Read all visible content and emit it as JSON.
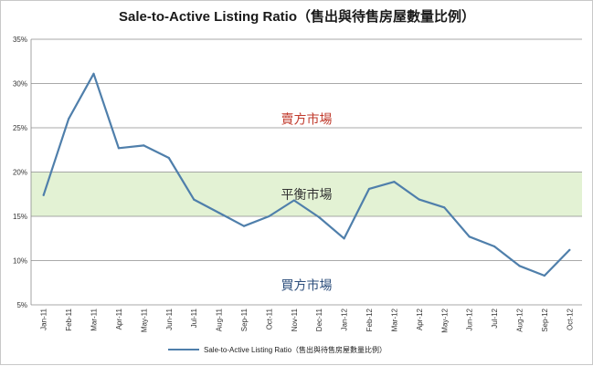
{
  "chart_data": {
    "type": "line",
    "title": "Sale-to-Active Listing Ratio（售出與待售房屋數量比例）",
    "xlabel": "",
    "ylabel": "",
    "categories": [
      "Jan-11",
      "Feb-11",
      "Mar-11",
      "Apr-11",
      "May-11",
      "Jun-11",
      "Jul-11",
      "Aug-11",
      "Sep-11",
      "Oct-11",
      "Nov-11",
      "Dec-11",
      "Jan-12",
      "Feb-12",
      "Mar-12",
      "Apr-12",
      "May-12",
      "Jun-12",
      "Jul-12",
      "Aug-12",
      "Sep-12",
      "Oct-12"
    ],
    "series": [
      {
        "name": "Sale-to-Active Listing Ratio（售出與待售房屋數量比例）",
        "values": [
          17.4,
          26.0,
          31.1,
          22.7,
          23.0,
          21.6,
          16.9,
          15.4,
          13.9,
          15.0,
          16.8,
          14.9,
          12.5,
          18.1,
          18.9,
          16.9,
          16.0,
          12.7,
          11.6,
          9.4,
          8.3,
          11.2
        ],
        "color": "#4f7fab"
      }
    ],
    "ylim": [
      5,
      35
    ],
    "yticks": [
      5,
      10,
      15,
      20,
      25,
      30,
      35
    ],
    "ytick_suffix": "%",
    "grid": true,
    "legend": "bottom",
    "bands": [
      {
        "label": "平衡市場",
        "from": 15,
        "to": 20,
        "fill": "#e3f2d4",
        "text_color": "#333333",
        "text_at": 17.5
      },
      {
        "label": "賣方市場",
        "text_color": "#c0392b",
        "text_at": 26.0
      },
      {
        "label": "買方市場",
        "text_color": "#2e4f7c",
        "text_at": 7.2
      }
    ]
  }
}
